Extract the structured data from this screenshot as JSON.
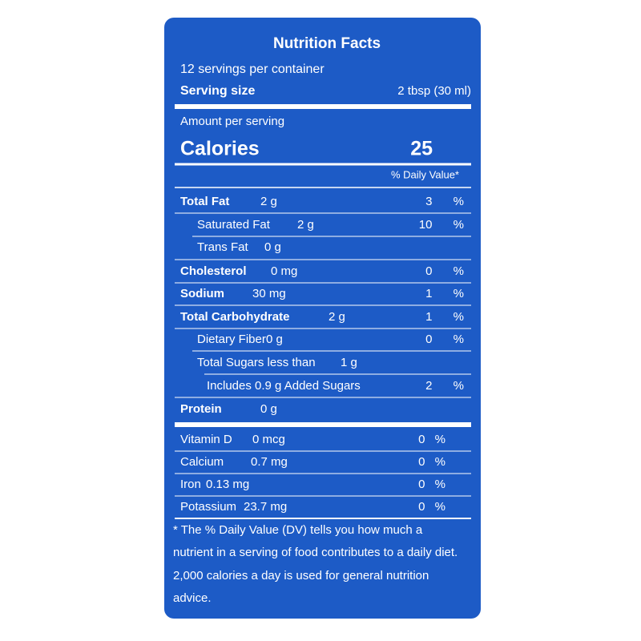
{
  "title": "Nutrition Facts",
  "servings": "12 servings per container",
  "serving_size": {
    "label": "Serving size",
    "value": "2 tbsp (30 ml)"
  },
  "amount_per_serving": "Amount per serving",
  "calories": {
    "label": "Calories",
    "value": 25
  },
  "daily_value_header": "% Daily Value*",
  "nutrients": [
    {
      "name": "Total Fat",
      "amount": "2 g",
      "dv": "3 %"
    },
    {
      "name": "Saturated Fat",
      "amount": "2 g",
      "dv": "10 %"
    },
    {
      "name": "Trans Fat",
      "amount": "0 g"
    },
    {
      "name": "Cholesterol",
      "amount": "0 mg",
      "dv": "0 %"
    },
    {
      "name": "Sodium",
      "amount": "30 mg",
      "dv": "1 %"
    },
    {
      "name": "Total Carbohydrate",
      "amount": "2 g",
      "dv": "1 %"
    },
    {
      "name": "Dietary Fiber",
      "amount": "0 g",
      "dv": "0 %"
    },
    {
      "name": "Total Sugars less than",
      "amount": "1 g"
    },
    {
      "name": "Includes 0.9 g Added Sugars",
      "dv": "2 %"
    },
    {
      "name": "Protein",
      "amount": "0 g"
    }
  ],
  "vitamins": [
    {
      "name": "Vitamin D",
      "amount": "0 mcg",
      "dv": "0 %"
    },
    {
      "name": "Calcium",
      "amount": "0.7 mg",
      "dv": "0 %"
    },
    {
      "name": "Iron",
      "amount": "0.13 mg",
      "dv": "0 %"
    },
    {
      "name": "Potassium",
      "amount": "23.7 mg",
      "dv": "0 %"
    }
  ],
  "footnote": [
    "* The % Daily Value (DV) tells you how much a",
    "nutrient in a serving of food contributes to a daily diet.",
    "2,000 calories a day is used for general nutrition",
    "advice."
  ]
}
